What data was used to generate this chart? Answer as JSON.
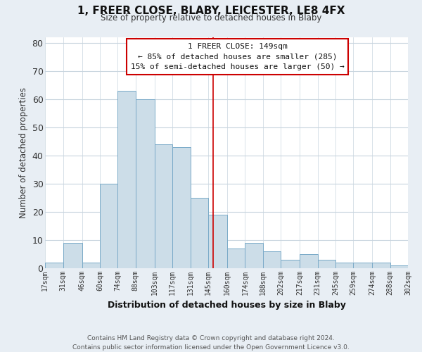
{
  "title": "1, FREER CLOSE, BLABY, LEICESTER, LE8 4FX",
  "subtitle": "Size of property relative to detached houses in Blaby",
  "xlabel": "Distribution of detached houses by size in Blaby",
  "ylabel": "Number of detached properties",
  "footer_line1": "Contains HM Land Registry data © Crown copyright and database right 2024.",
  "footer_line2": "Contains public sector information licensed under the Open Government Licence v3.0.",
  "bar_edges": [
    17,
    31,
    46,
    60,
    74,
    88,
    103,
    117,
    131,
    145,
    160,
    174,
    188,
    202,
    217,
    231,
    245,
    259,
    274,
    288,
    302
  ],
  "bar_heights": [
    2,
    9,
    2,
    30,
    63,
    60,
    44,
    43,
    25,
    19,
    7,
    9,
    6,
    3,
    5,
    3,
    2,
    2,
    2,
    1
  ],
  "bar_color": "#ccdde8",
  "bar_edge_color": "#7aaac8",
  "tick_labels": [
    "17sqm",
    "31sqm",
    "46sqm",
    "60sqm",
    "74sqm",
    "88sqm",
    "103sqm",
    "117sqm",
    "131sqm",
    "145sqm",
    "160sqm",
    "174sqm",
    "188sqm",
    "202sqm",
    "217sqm",
    "231sqm",
    "245sqm",
    "259sqm",
    "274sqm",
    "288sqm",
    "302sqm"
  ],
  "vline_x": 149,
  "vline_color": "#cc0000",
  "ylim": [
    0,
    82
  ],
  "yticks": [
    0,
    10,
    20,
    30,
    40,
    50,
    60,
    70,
    80
  ],
  "annotation_title": "1 FREER CLOSE: 149sqm",
  "annotation_line1": "← 85% of detached houses are smaller (285)",
  "annotation_line2": "15% of semi-detached houses are larger (50) →",
  "bg_color": "#e8eef4",
  "plot_bg_color": "#ffffff",
  "grid_color": "#c8d4de"
}
